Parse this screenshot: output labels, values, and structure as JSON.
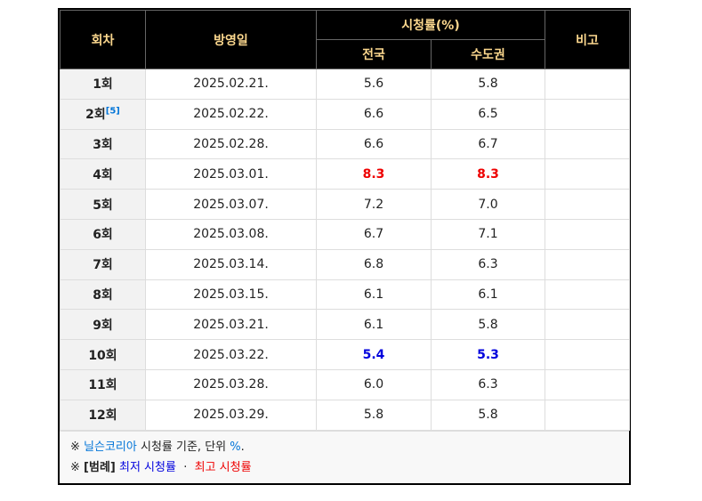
{
  "table": {
    "header": {
      "episode": "회차",
      "date": "방영일",
      "rating": "시청률(%)",
      "national": "전국",
      "capital": "수도권",
      "note": "비고"
    },
    "rows": [
      {
        "episode": "1회",
        "date": "2025.02.21.",
        "national": "5.6",
        "capital": "5.8"
      },
      {
        "episode": "2회",
        "ref": "[5]",
        "date": "2025.02.22.",
        "national": "6.6",
        "capital": "6.5"
      },
      {
        "episode": "3회",
        "date": "2025.02.28.",
        "national": "6.6",
        "capital": "6.7"
      },
      {
        "episode": "4회",
        "date": "2025.03.01.",
        "national": "8.3",
        "capital": "8.3"
      },
      {
        "episode": "5회",
        "date": "2025.03.07.",
        "national": "7.2",
        "capital": "7.0"
      },
      {
        "episode": "6회",
        "date": "2025.03.08.",
        "national": "6.7",
        "capital": "7.1"
      },
      {
        "episode": "7회",
        "date": "2025.03.14.",
        "national": "6.8",
        "capital": "6.3"
      },
      {
        "episode": "8회",
        "date": "2025.03.15.",
        "national": "6.1",
        "capital": "6.1"
      },
      {
        "episode": "9회",
        "date": "2025.03.21.",
        "national": "6.1",
        "capital": "5.8"
      },
      {
        "episode": "10회",
        "date": "2025.03.22.",
        "national": "5.4",
        "capital": "5.3"
      },
      {
        "episode": "11회",
        "date": "2025.03.28.",
        "national": "6.0",
        "capital": "6.3"
      },
      {
        "episode": "12회",
        "date": "2025.03.29.",
        "national": "5.8",
        "capital": "5.8"
      }
    ],
    "lowest_color": "#0000dd",
    "highest_color": "#ee0000"
  },
  "footer": {
    "line1": {
      "mark": "※",
      "source": "닐슨코리아",
      "text": "시청률 기준, 단위",
      "unit": "%",
      "end": "."
    },
    "line2": {
      "mark": "※",
      "legend": "[범례]",
      "lowest": "최저 시청률",
      "dot": "·",
      "highest": "최고 시청률"
    }
  }
}
